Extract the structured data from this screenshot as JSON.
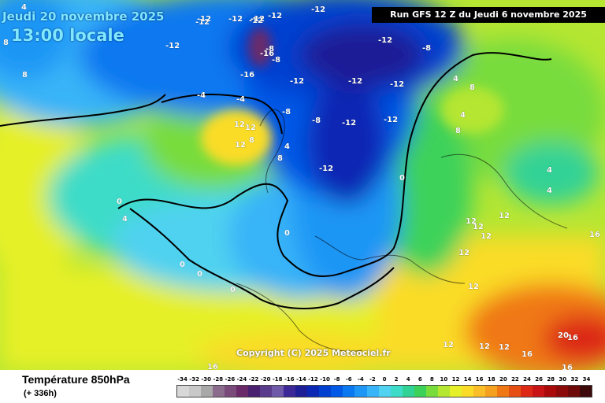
{
  "header": {
    "date": "Jeudi 20 novembre 2025",
    "time": "13:00 locale",
    "run": "Run GFS 12 Z du Jeudi 6 novembre 2025"
  },
  "copyright": "Copyright (C) 2025 Meteociel.fr",
  "legend": {
    "title": "Température 850hPa",
    "subtitle": "(+ 336h)",
    "scale": [
      {
        "label": "-34",
        "color": "#d8d8d8"
      },
      {
        "label": "-32",
        "color": "#c8c8c8"
      },
      {
        "label": "-30",
        "color": "#a8a8a8"
      },
      {
        "label": "-28",
        "color": "#8c6c8c"
      },
      {
        "label": "-26",
        "color": "#7a4a7a"
      },
      {
        "label": "-24",
        "color": "#6a2a6a"
      },
      {
        "label": "-22",
        "color": "#4a2070"
      },
      {
        "label": "-20",
        "color": "#5a3c8c"
      },
      {
        "label": "-18",
        "color": "#6e5aa8"
      },
      {
        "label": "-16",
        "color": "#3c2896"
      },
      {
        "label": "-14",
        "color": "#1e1e96"
      },
      {
        "label": "-12",
        "color": "#0a28b4"
      },
      {
        "label": "-10",
        "color": "#0040d0"
      },
      {
        "label": "-8",
        "color": "#0058e6"
      },
      {
        "label": "-6",
        "color": "#0a78f0"
      },
      {
        "label": "-4",
        "color": "#1e96f5"
      },
      {
        "label": "-2",
        "color": "#38b4f8"
      },
      {
        "label": "0",
        "color": "#50d2f0"
      },
      {
        "label": "2",
        "color": "#3cdcc8"
      },
      {
        "label": "4",
        "color": "#30d296"
      },
      {
        "label": "6",
        "color": "#3cd25a"
      },
      {
        "label": "8",
        "color": "#78dc3c"
      },
      {
        "label": "10",
        "color": "#b4e632"
      },
      {
        "label": "12",
        "color": "#e6f028"
      },
      {
        "label": "14",
        "color": "#fadc28"
      },
      {
        "label": "16",
        "color": "#fabe28"
      },
      {
        "label": "18",
        "color": "#f5a01e"
      },
      {
        "label": "20",
        "color": "#f07814"
      },
      {
        "label": "22",
        "color": "#e65014"
      },
      {
        "label": "24",
        "color": "#dc2814"
      },
      {
        "label": "26",
        "color": "#c81414"
      },
      {
        "label": "28",
        "color": "#aa0a0a"
      },
      {
        "label": "30",
        "color": "#8c0a0a"
      },
      {
        "label": "32",
        "color": "#6e0a0a"
      },
      {
        "label": "34",
        "color": "#3c0a0a"
      }
    ]
  },
  "map_labels": [
    "-12",
    "-12",
    "-12",
    "-12",
    "-8",
    "-16",
    "-12",
    "-8",
    "-16",
    "-12",
    "-12",
    "-12",
    "-12",
    "-8",
    "-4",
    "-8",
    "-12",
    "-8",
    "-4",
    "-12",
    "-12",
    "-12",
    "-12",
    "-12",
    "12",
    "12",
    "12",
    "8",
    "8",
    "4",
    "0",
    "0",
    "4",
    "0",
    "0",
    "0",
    "0",
    "8",
    "4",
    "8",
    "4",
    "4",
    "4",
    "12",
    "12",
    "12",
    "12",
    "12",
    "12",
    "12",
    "12",
    "12",
    "16",
    "16",
    "16",
    "16",
    "16",
    "20",
    "8",
    "8",
    "4"
  ]
}
